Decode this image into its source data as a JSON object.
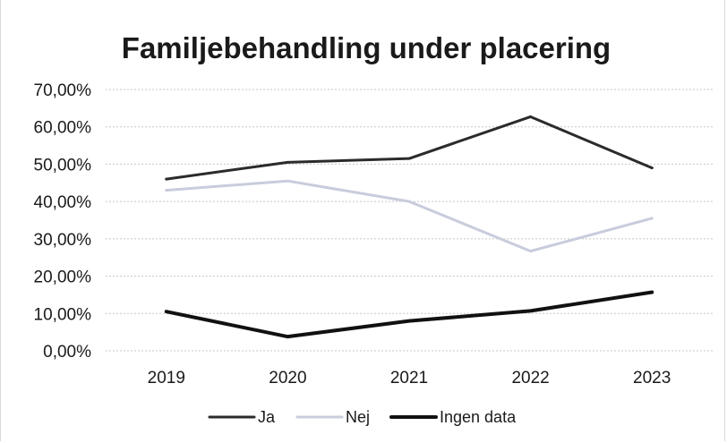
{
  "chart_data": {
    "type": "line",
    "title": "Familjebehandling under placering",
    "xlabel": "",
    "ylabel": "",
    "categories": [
      "2019",
      "2020",
      "2021",
      "2022",
      "2023"
    ],
    "yticks": [
      "0,00%",
      "10,00%",
      "20,00%",
      "30,00%",
      "40,00%",
      "50,00%",
      "60,00%",
      "70,00%"
    ],
    "ylim": [
      0,
      70
    ],
    "grid": true,
    "legend_position": "bottom",
    "series": [
      {
        "name": "Ja",
        "values": [
          46,
          50.5,
          51.5,
          62.7,
          49
        ],
        "color": "#2b2b2b"
      },
      {
        "name": "Nej",
        "values": [
          43,
          45.5,
          40,
          26.7,
          35.5
        ],
        "color": "#c8ccdc"
      },
      {
        "name": "Ingen data",
        "values": [
          10.5,
          3.8,
          8,
          10.7,
          15.7
        ],
        "color": "#111111"
      }
    ]
  }
}
